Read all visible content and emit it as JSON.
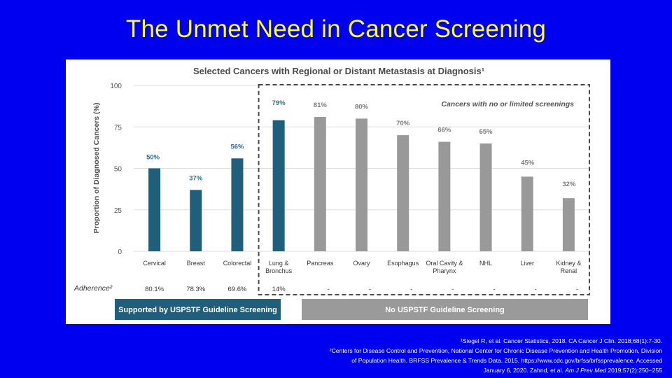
{
  "slide": {
    "title": "The Unmet Need in Cancer Screening"
  },
  "chart_data": {
    "type": "bar",
    "title": "Selected Cancers with Regional or Distant Metastasis at Diagnosis¹",
    "xlabel": "",
    "ylabel": "Proportion of Diagnosed Cancers (%)",
    "ylim": [
      0,
      100
    ],
    "yticks": [
      0,
      25,
      50,
      75,
      100
    ],
    "grid": true,
    "categories": [
      "Cervical",
      "Breast",
      "Colorectal",
      "Lung & Bronchus",
      "Pancreas",
      "Ovary",
      "Esophagus",
      "Oral Cavity & Pharynx",
      "NHL",
      "Liver",
      "Kidney & Renal"
    ],
    "values": [
      50,
      37,
      56,
      79,
      81,
      80,
      70,
      66,
      65,
      45,
      32
    ],
    "value_labels": [
      "50%",
      "37%",
      "56%",
      "79%",
      "81%",
      "80%",
      "70%",
      "66%",
      "65%",
      "45%",
      "32%"
    ],
    "adherence_label": "Adherence²",
    "adherence": [
      "80.1%",
      "78.3%",
      "69.6%",
      "14%",
      "-",
      "-",
      "-",
      "-",
      "-",
      "-",
      "-"
    ],
    "box_annotation": "Cancers with no or limited screenings",
    "groups": [
      {
        "label": "Supported by USPSTF Guideline Screening",
        "color": "#1f5f7c",
        "count": 4
      },
      {
        "label": "No USPSTF Guideline Screening",
        "color": "#9a9a9a",
        "count": 7
      }
    ],
    "colors": {
      "screened_bar": "#1f5f7c",
      "unscreened_bar": "#999999",
      "screened_label": "#2b6f8e",
      "unscreened_label": "#7a7a7a"
    }
  },
  "footnotes": {
    "line1": "¹Siegel R, et al. Cancer Statistics, 2018. CA Cancer J Clin. 2018;68(1):7-30.",
    "line2": "²Centers for Disease Control and Prevention, National Center for Chronic Disease Prevention and Health Promotion, Division",
    "line3": "of Population Health. BRFSS Prevalence & Trends Data. 2015. https://www.cdc.gov/brfss/brfssprevalence. Accessed",
    "line4a": "January 6, 2020. Zahnd, et al. ",
    "line4b": "Am J Prev Med",
    "line4c": " 2019;57(2):250−255"
  }
}
